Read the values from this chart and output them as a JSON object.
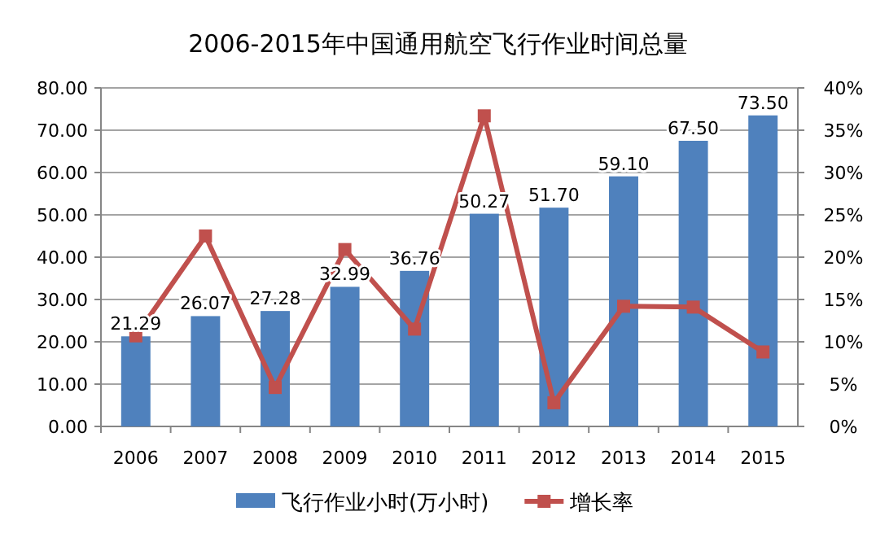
{
  "chart_data": {
    "type": "bar",
    "title": "2006-2015年中国通用航空飞行作业时间总量",
    "categories": [
      "2006",
      "2007",
      "2008",
      "2009",
      "2010",
      "2011",
      "2012",
      "2013",
      "2014",
      "2015"
    ],
    "series": [
      {
        "name": "飞行作业小时(万小时)",
        "color": "#4f81bd",
        "values": [
          21.29,
          26.07,
          27.28,
          32.99,
          36.76,
          50.27,
          51.7,
          59.1,
          67.5,
          73.5
        ],
        "value_labels": [
          "21.29",
          "26.07",
          "27.28",
          "32.99",
          "36.76",
          "50.27",
          "51.70",
          "59.10",
          "67.50",
          "73.50"
        ]
      },
      {
        "name": "增长率",
        "type": "line",
        "axis": "y2",
        "color": "#c0504d",
        "marker": "square",
        "values": [
          10.7,
          22.5,
          4.6,
          20.9,
          11.5,
          36.7,
          2.8,
          14.2,
          14.1,
          8.8
        ]
      }
    ],
    "ylim": [
      0,
      80
    ],
    "yticks": [
      {
        "value": 0,
        "label": "0.00"
      },
      {
        "value": 10,
        "label": "10.00"
      },
      {
        "value": 20,
        "label": "20.00"
      },
      {
        "value": 30,
        "label": "30.00"
      },
      {
        "value": 40,
        "label": "40.00"
      },
      {
        "value": 50,
        "label": "50.00"
      },
      {
        "value": 60,
        "label": "60.00"
      },
      {
        "value": 70,
        "label": "70.00"
      },
      {
        "value": 80,
        "label": "80.00"
      }
    ],
    "y2lim": [
      0,
      40
    ],
    "y2ticks": [
      {
        "value": 0,
        "label": "0%"
      },
      {
        "value": 5,
        "label": "5%"
      },
      {
        "value": 10,
        "label": "10%"
      },
      {
        "value": 15,
        "label": "15%"
      },
      {
        "value": 20,
        "label": "20%"
      },
      {
        "value": 25,
        "label": "25%"
      },
      {
        "value": 30,
        "label": "30%"
      },
      {
        "value": 35,
        "label": "35%"
      },
      {
        "value": 40,
        "label": "40%"
      }
    ],
    "grid": "y",
    "legend": "bottom"
  }
}
